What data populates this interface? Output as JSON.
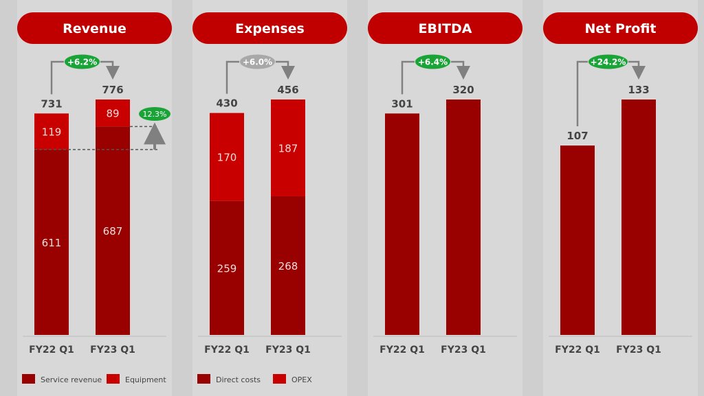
{
  "colors": {
    "dark": "#990000",
    "light": "#c80000",
    "header": "#c00000",
    "green": "#1aa336",
    "grey_pill": "#a8a8a8",
    "text": "#444444"
  },
  "chart_data": [
    {
      "type": "bar",
      "stacked": true,
      "title": "Revenue",
      "categories": [
        "FY22 Q1",
        "FY23 Q1"
      ],
      "series": [
        {
          "name": "Service revenue",
          "color": "dark",
          "values": [
            611,
            687
          ]
        },
        {
          "name": "Equipment",
          "color": "light",
          "values": [
            119,
            89
          ]
        }
      ],
      "totals": [
        "731",
        "776"
      ],
      "change": "+6.2%",
      "change_color": "green",
      "extra_badge": "12.3%"
    },
    {
      "type": "bar",
      "stacked": true,
      "title": "Expenses",
      "categories": [
        "FY22 Q1",
        "FY23 Q1"
      ],
      "series": [
        {
          "name": "Direct costs",
          "color": "dark",
          "values": [
            259,
            268
          ]
        },
        {
          "name": "OPEX",
          "color": "light",
          "values": [
            170,
            187
          ]
        }
      ],
      "totals": [
        "430",
        "456"
      ],
      "change": "+6.0%",
      "change_color": "grey_pill"
    },
    {
      "type": "bar",
      "stacked": false,
      "title": "EBITDA",
      "categories": [
        "FY22 Q1",
        "FY23 Q1"
      ],
      "series": [
        {
          "name": "EBITDA",
          "color": "dark",
          "values": [
            301,
            320
          ]
        }
      ],
      "totals": [
        "301",
        "320"
      ],
      "change": "+6.4%",
      "change_color": "green"
    },
    {
      "type": "bar",
      "stacked": false,
      "title": "Net Profit",
      "categories": [
        "FY22 Q1",
        "FY23 Q1"
      ],
      "series": [
        {
          "name": "Net Profit",
          "color": "dark",
          "values": [
            107,
            133
          ]
        }
      ],
      "totals": [
        "107",
        "133"
      ],
      "change": "+24.2%",
      "change_color": "green"
    }
  ]
}
